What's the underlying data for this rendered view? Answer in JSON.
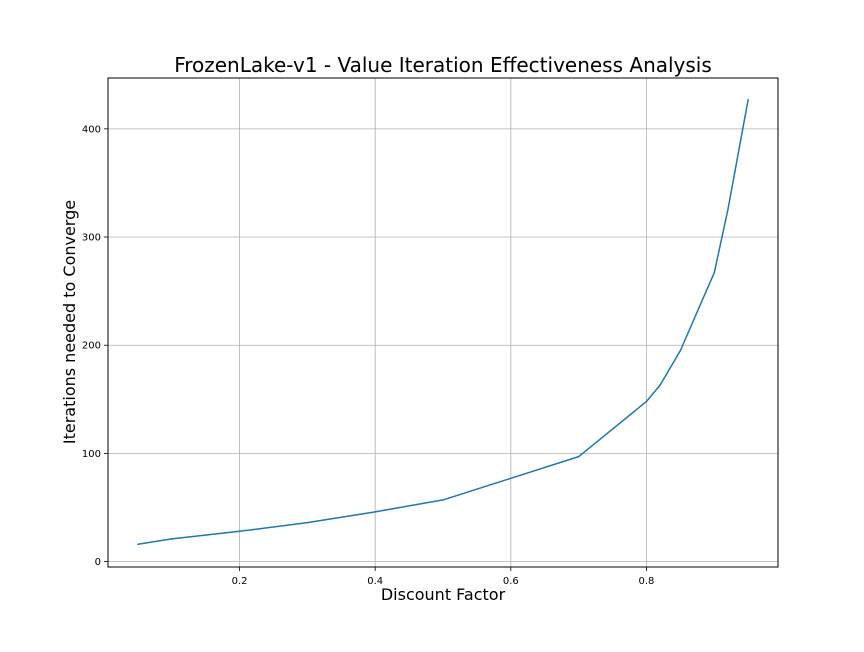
{
  "chart_data": {
    "type": "line",
    "title": "FrozenLake-v1 - Value Iteration Effectiveness Analysis",
    "xlabel": "Discount Factor",
    "ylabel": "Iterations needed to Converge",
    "xlim": [
      0.006,
      0.994
    ],
    "ylim": [
      -5,
      447
    ],
    "xticks": [
      0.2,
      0.4,
      0.6,
      0.8
    ],
    "xtick_labels": [
      "0.2",
      "0.4",
      "0.6",
      "0.8"
    ],
    "yticks": [
      0,
      100,
      200,
      300,
      400
    ],
    "ytick_labels": [
      "0",
      "100",
      "200",
      "300",
      "400"
    ],
    "grid": true,
    "series": [
      {
        "color": "#1f77b4",
        "x": [
          0.05,
          0.1,
          0.2,
          0.3,
          0.4,
          0.5,
          0.6,
          0.7,
          0.8,
          0.82,
          0.85,
          0.9,
          0.92,
          0.95
        ],
        "y": [
          16,
          21,
          28,
          36,
          46,
          57,
          77,
          97,
          148,
          163,
          195,
          267,
          325,
          427
        ]
      }
    ]
  }
}
